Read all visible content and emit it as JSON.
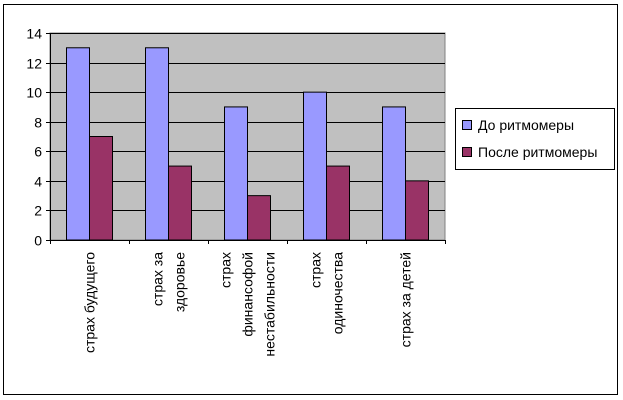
{
  "chart_data": {
    "type": "bar",
    "categories": [
      [
        "страх будущего"
      ],
      [
        "страх за",
        "здоровье"
      ],
      [
        "страх",
        "финансофой",
        "нестабильности"
      ],
      [
        "страх",
        "одиночества"
      ],
      [
        "страх за детей"
      ]
    ],
    "series": [
      {
        "name": "До ритмомеры",
        "color": "#9999ff",
        "values": [
          13,
          13,
          9,
          10,
          9
        ]
      },
      {
        "name": "После ритмомеры",
        "color": "#993366",
        "values": [
          7,
          5,
          3,
          5,
          4
        ]
      }
    ],
    "ylim": [
      0,
      14
    ],
    "yticks": [
      0,
      2,
      4,
      6,
      8,
      10,
      12,
      14
    ],
    "grid": true,
    "plot_background": "#c0c0c0",
    "legend_position": "right"
  }
}
